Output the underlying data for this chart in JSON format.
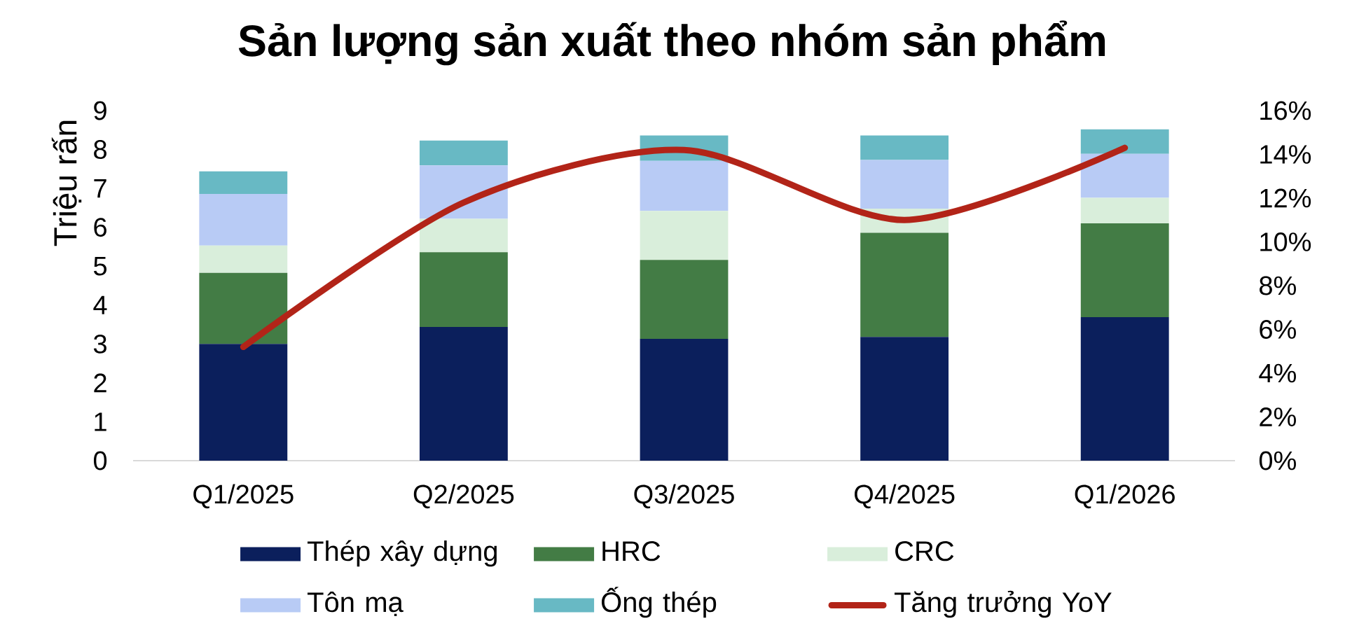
{
  "chart_data": {
    "type": "bar",
    "title": "Sản lượng sản xuất theo nhóm sản phẩm",
    "ylabel": "Triệu rấn",
    "categories": [
      "Q1/2025",
      "Q2/2025",
      "Q3/2025",
      "Q4/2025",
      "Q1/2026"
    ],
    "stacked": true,
    "series": [
      {
        "name": "Thép xây dựng",
        "color": "#0b1f5c",
        "values": [
          3.0,
          3.44,
          3.13,
          3.18,
          3.69
        ]
      },
      {
        "name": "HRC",
        "color": "#437c45",
        "values": [
          1.83,
          1.92,
          2.03,
          2.68,
          2.41
        ]
      },
      {
        "name": "CRC",
        "color": "#d9eedb",
        "values": [
          0.7,
          0.86,
          1.26,
          0.62,
          0.66
        ]
      },
      {
        "name": "Tôn mạ",
        "color": "#b8cbf5",
        "values": [
          1.33,
          1.37,
          1.29,
          1.25,
          1.13
        ]
      },
      {
        "name": "Ống thép",
        "color": "#68b9c4",
        "values": [
          0.58,
          0.64,
          0.65,
          0.63,
          0.63
        ]
      },
      {
        "name": "Tăng trưởng YoY",
        "type": "line",
        "axis": "y2",
        "color": "#b22418",
        "values": [
          5.2,
          11.8,
          14.2,
          11.0,
          14.3
        ]
      }
    ],
    "ylim": [
      0,
      9
    ],
    "yticks": [
      0,
      1,
      2,
      3,
      4,
      5,
      6,
      7,
      8,
      9
    ],
    "y2lim": [
      0,
      16
    ],
    "y2ticks": [
      {
        "value": 0,
        "label": "0%"
      },
      {
        "value": 2,
        "label": "2%"
      },
      {
        "value": 4,
        "label": "4%"
      },
      {
        "value": 6,
        "label": "6%"
      },
      {
        "value": 8,
        "label": "8%"
      },
      {
        "value": 10,
        "label": "10%"
      },
      {
        "value": 12,
        "label": "12%"
      },
      {
        "value": 14,
        "label": "14%"
      },
      {
        "value": 16,
        "label": "16%"
      }
    ],
    "legend": "bottom",
    "line_style": "solid",
    "marker": "none"
  }
}
